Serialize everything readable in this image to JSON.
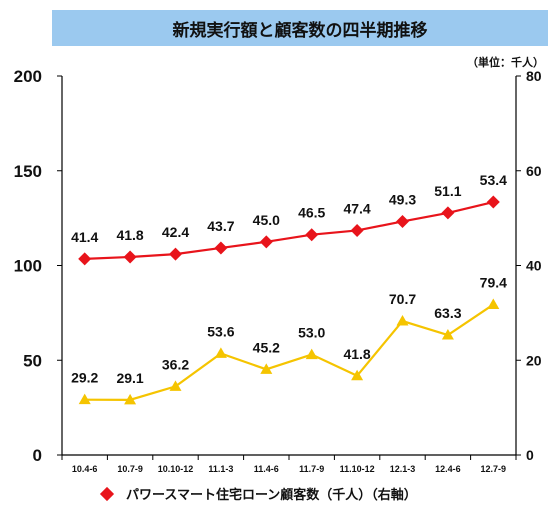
{
  "title": "新規実行額と顧客数の四半期推移",
  "unit_label": "（単位：千人）",
  "legend": {
    "label": "パワースマート住宅ローン顧客数（千人）（右軸）"
  },
  "colors": {
    "red_series": "#e8141b",
    "yellow_series": "#f5c400",
    "title_bg": "#9bc9ef",
    "axis": "#000000"
  },
  "chart_data": {
    "type": "line",
    "categories": [
      "10.4-6",
      "10.7-9",
      "10.10-12",
      "11.1-3",
      "11.4-6",
      "11.7-9",
      "11.10-12",
      "12.1-3",
      "12.4-6",
      "12.7-9"
    ],
    "y_left": {
      "ticks": [
        "0",
        "50",
        "100",
        "150",
        "200"
      ],
      "ylim": [
        0,
        200
      ]
    },
    "y_right": {
      "ticks": [
        "0",
        "20",
        "40",
        "60",
        "80"
      ],
      "ylim": [
        0,
        80
      ]
    },
    "series": [
      {
        "name": "パワースマート住宅ローン顧客数（千人）（右軸）",
        "axis": "right",
        "marker": "diamond",
        "values": [
          41.4,
          41.8,
          42.4,
          43.7,
          45.0,
          46.5,
          47.4,
          49.3,
          51.1,
          53.4
        ],
        "labels": [
          "41.4",
          "41.8",
          "42.4",
          "43.7",
          "45.0",
          "46.5",
          "47.4",
          "49.3",
          "51.1",
          "53.4"
        ]
      },
      {
        "axis": "left",
        "marker": "triangle",
        "values": [
          29.2,
          29.1,
          36.2,
          53.6,
          45.2,
          53.0,
          41.8,
          70.7,
          63.3,
          79.4
        ],
        "labels": [
          "29.2",
          "29.1",
          "36.2",
          "53.6",
          "45.2",
          "53.0",
          "41.8",
          "70.7",
          "63.3",
          "79.4"
        ]
      }
    ],
    "grid": false
  }
}
